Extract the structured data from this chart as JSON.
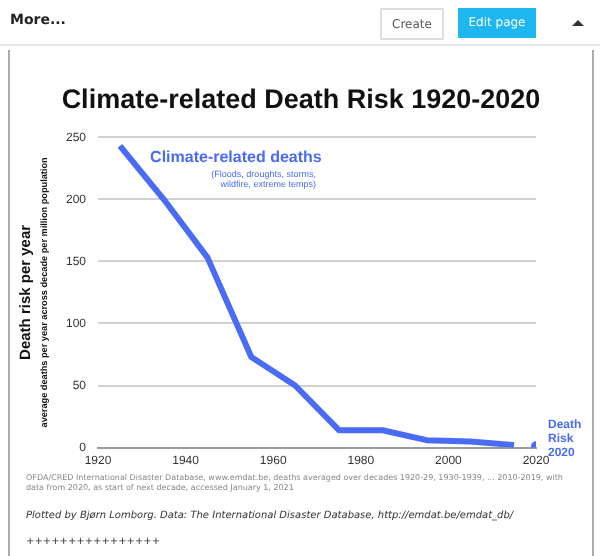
{
  "chart_data": {
    "type": "line",
    "title": "Climate-related Death Risk 1920-2020",
    "ylabel": "Death risk per year\naverage deaths per year across decade per million population",
    "xlim": [
      1920,
      2020
    ],
    "xticks": [
      1920,
      1940,
      1960,
      1980,
      2000,
      2020
    ],
    "ylim": [
      0,
      250
    ],
    "yticks": [
      0,
      50,
      100,
      150,
      200,
      250
    ],
    "grid": "y",
    "legend": false,
    "series": [
      {
        "name": "Climate-related deaths",
        "color": "#4a6cf5",
        "marker": "none",
        "x": [
          1925,
          1935,
          1945,
          1955,
          1965,
          1975,
          1985,
          1995,
          2005,
          2015
        ],
        "values": [
          243,
          200,
          153,
          73,
          50,
          14,
          14,
          6,
          5,
          2
        ]
      },
      {
        "name": "Death Risk 2020",
        "type": "scatter",
        "color": "#4a6cf5",
        "x": [
          2020
        ],
        "values": [
          1
        ]
      }
    ],
    "annotations": [
      "(Floods, droughts, storms, wildfire, extreme temps)",
      "OFDA/CRED International Disaster Database, www.emdat.be, deaths averaged over decades 1920-29, 1930-1939, ... 2010-2019, with data from 2020, as start of next decade, accessed January 1, 2021",
      "Plotted by Bjørn Lomborg. Data: The International Disaster Database, http://emdat.be/emdat_db/",
      "++++++++++++++++",
      "More...",
      "Create",
      "Edit page"
    ]
  }
}
